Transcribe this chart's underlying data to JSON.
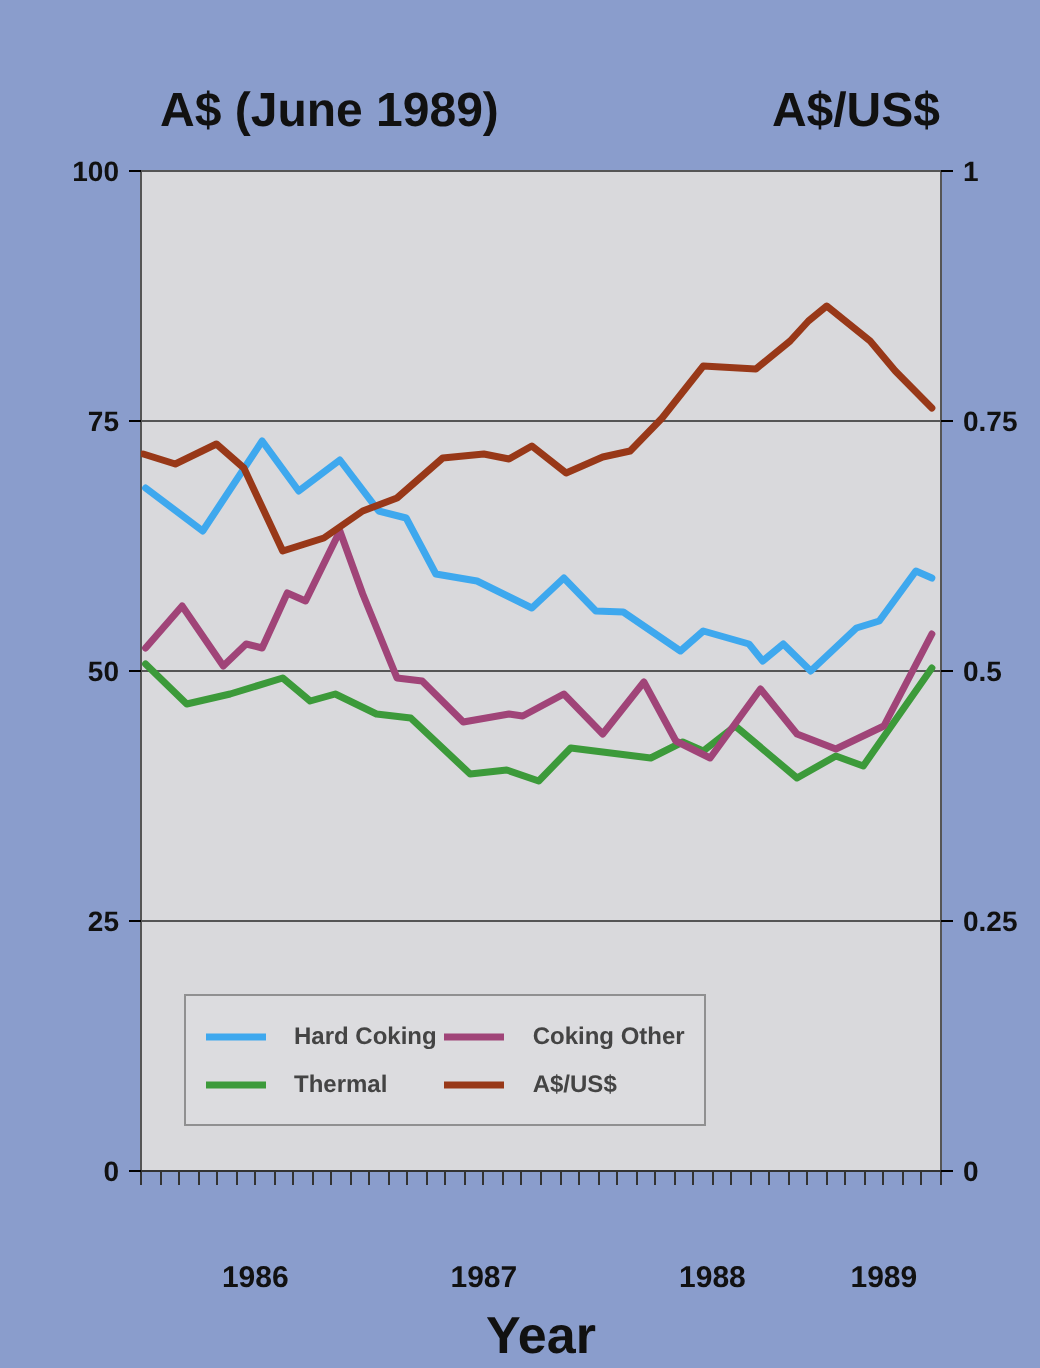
{
  "chart_data": {
    "type": "line",
    "ylabel": "A$ (June 1989)",
    "y2label": "A$/US$",
    "xlabel": "Year",
    "xlim": [
      1986,
      1989.5
    ],
    "ylim": [
      0,
      100
    ],
    "y2lim": [
      0,
      1
    ],
    "xticks": [
      {
        "value": 1986,
        "label": null
      },
      {
        "value": 1986.5,
        "label": "1986"
      },
      {
        "value": 1987,
        "label": null
      },
      {
        "value": 1987.5,
        "label": "1987"
      },
      {
        "value": 1988,
        "label": null
      },
      {
        "value": 1988.5,
        "label": "1988"
      },
      {
        "value": 1989,
        "label": null
      },
      {
        "value": 1989.25,
        "label": "1989"
      },
      {
        "value": 1989.5,
        "label": null
      }
    ],
    "yticks": [
      0,
      25,
      50,
      75,
      100
    ],
    "y2ticks": [
      0,
      0.25,
      0.5,
      0.75,
      1
    ],
    "grid": "y",
    "legend": "bottom left",
    "line_style": "solid",
    "marker": "none",
    "series": [
      {
        "name": "Hard Coking",
        "color": "#3ea8ee",
        "x": [
          1986.02,
          1986.27,
          1986.53,
          1986.69,
          1986.87,
          1987.04,
          1987.16,
          1987.29,
          1987.47,
          1987.71,
          1987.85,
          1987.99,
          1988.11,
          1988.36,
          1988.46,
          1988.66,
          1988.72,
          1988.81,
          1988.93,
          1989.13,
          1989.23,
          1989.39,
          1989.46
        ],
        "values": [
          68.3,
          64,
          73,
          68,
          71.1,
          66,
          65.3,
          59.7,
          59,
          56.3,
          59.3,
          56,
          55.9,
          52,
          54,
          52.7,
          51,
          52.7,
          50,
          54.3,
          55,
          60,
          59.3
        ]
      },
      {
        "name": "Thermal",
        "color": "#3c9a3a",
        "x": [
          1986.02,
          1986.2,
          1986.39,
          1986.62,
          1986.74,
          1986.85,
          1987.03,
          1987.18,
          1987.44,
          1987.6,
          1987.74,
          1987.88,
          1988.23,
          1988.37,
          1988.46,
          1988.6,
          1988.87,
          1989.04,
          1989.16,
          1989.46
        ],
        "values": [
          50.7,
          46.7,
          47.7,
          49.3,
          47,
          47.7,
          45.7,
          45.3,
          39.7,
          40.1,
          39,
          42.3,
          41.3,
          42.9,
          42,
          44.5,
          39.3,
          41.5,
          40.5,
          50.3
        ]
      },
      {
        "name": "Coking Other",
        "color": "#a04478",
        "x": [
          1986.02,
          1986.18,
          1986.36,
          1986.46,
          1986.53,
          1986.64,
          1986.72,
          1986.87,
          1986.97,
          1987.12,
          1987.23,
          1987.41,
          1987.61,
          1987.67,
          1987.85,
          1988.02,
          1988.2,
          1988.34,
          1988.49,
          1988.71,
          1988.87,
          1989.04,
          1989.25,
          1989.46
        ],
        "values": [
          52.3,
          56.5,
          50.5,
          52.7,
          52.3,
          57.8,
          57,
          64,
          57.7,
          49.3,
          49,
          44.9,
          45.7,
          45.5,
          47.7,
          43.7,
          48.9,
          43,
          41.3,
          48.2,
          43.7,
          42.2,
          44.5,
          53.7
        ]
      },
      {
        "name": "A$/US$",
        "color": "#983818",
        "axis": "y2",
        "x": [
          1986.01,
          1986.15,
          1986.33,
          1986.45,
          1986.62,
          1986.8,
          1986.97,
          1987.12,
          1987.32,
          1987.5,
          1987.61,
          1987.71,
          1987.86,
          1988.02,
          1988.14,
          1988.28,
          1988.46,
          1988.69,
          1988.84,
          1988.92,
          1989.0,
          1989.19,
          1989.3,
          1989.46
        ],
        "values": [
          0.717,
          0.707,
          0.727,
          0.703,
          0.62,
          0.633,
          0.66,
          0.673,
          0.713,
          0.717,
          0.712,
          0.725,
          0.698,
          0.714,
          0.72,
          0.753,
          0.805,
          0.802,
          0.83,
          0.85,
          0.865,
          0.83,
          0.8,
          0.763
        ]
      }
    ]
  }
}
